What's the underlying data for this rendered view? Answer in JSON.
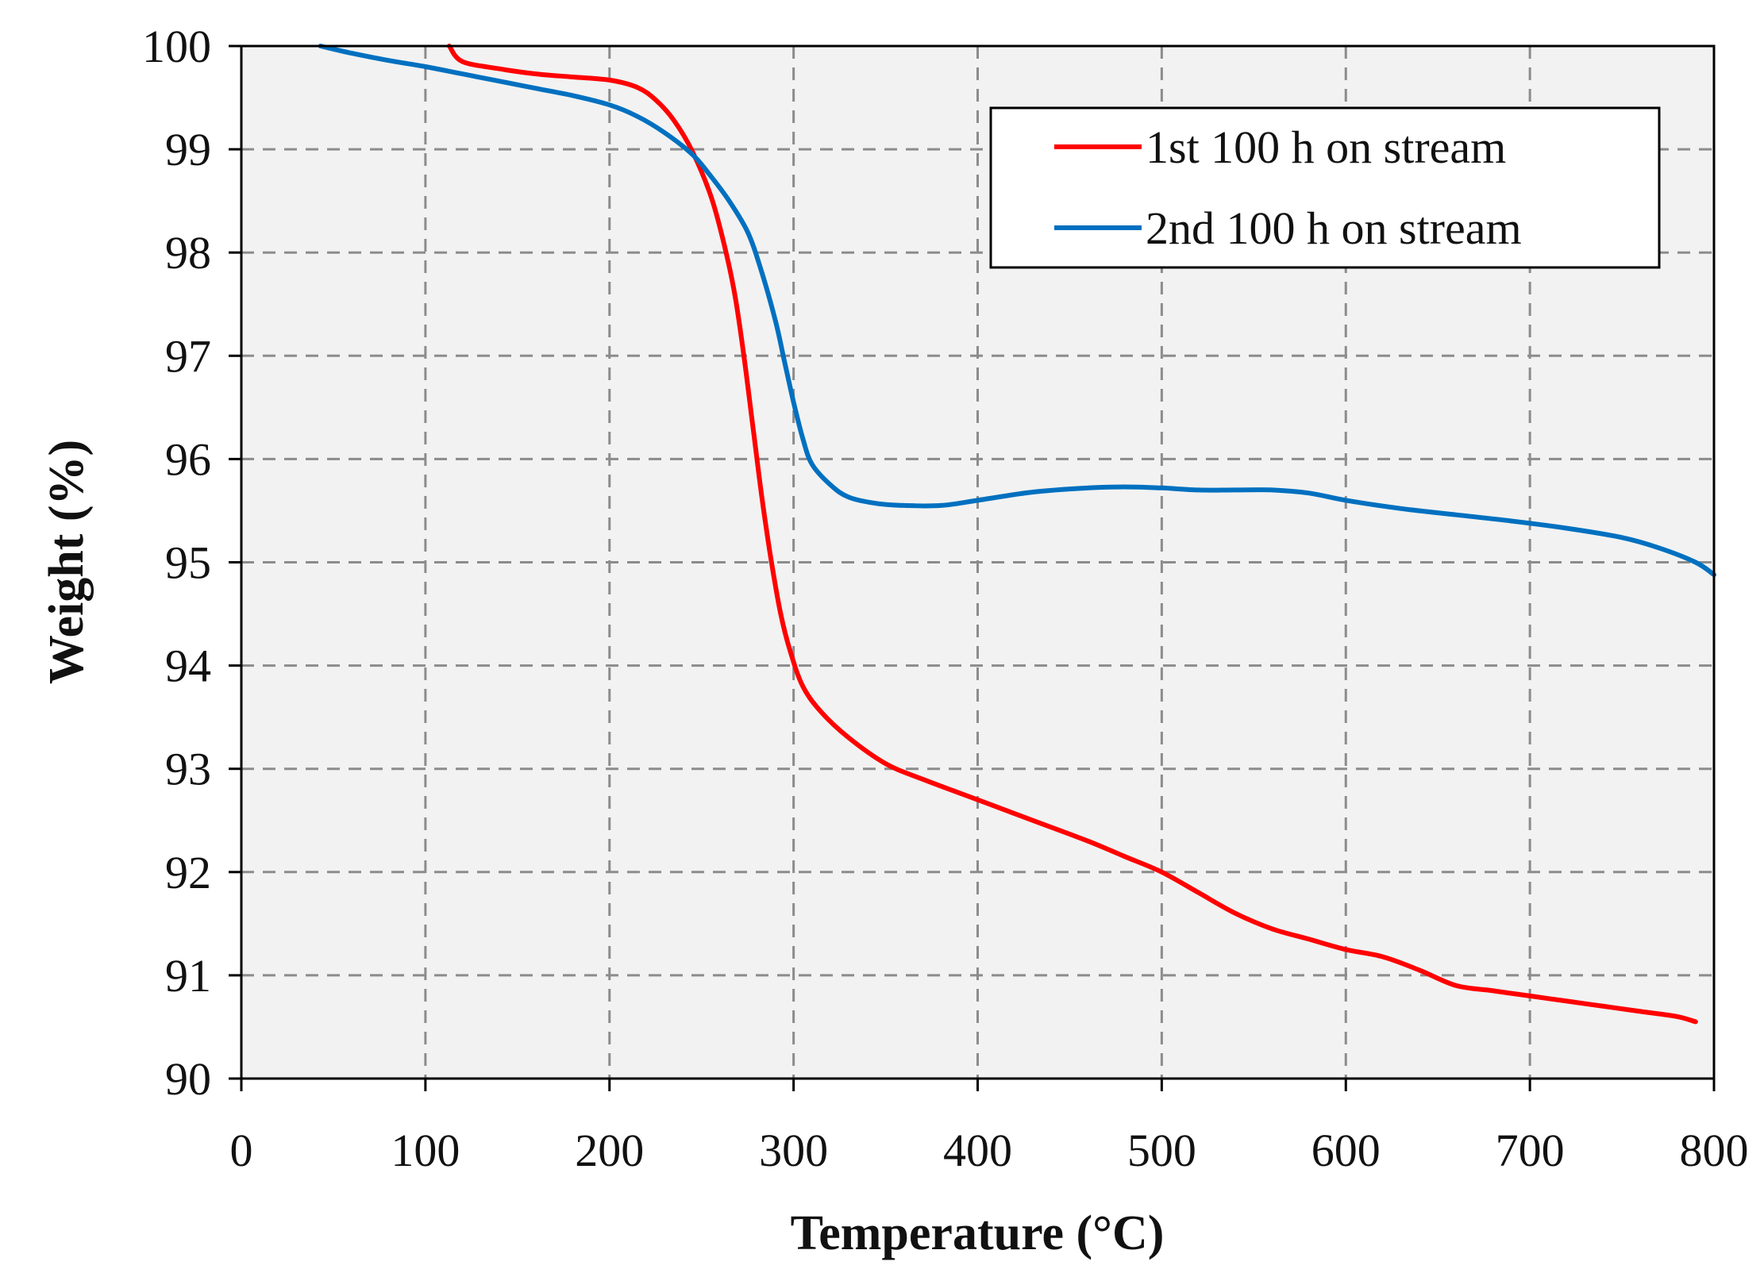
{
  "chart_data": {
    "type": "line",
    "title": "",
    "xlabel": "Temperature (°C)",
    "ylabel": "Weight  (%)",
    "xlim": [
      0,
      800
    ],
    "ylim": [
      90,
      100
    ],
    "xticks": [
      "0",
      "100",
      "200",
      "300",
      "400",
      "500",
      "600",
      "700",
      "800"
    ],
    "yticks": [
      "90",
      "91",
      "92",
      "93",
      "94",
      "95",
      "96",
      "97",
      "98",
      "99",
      "100"
    ],
    "grid": true,
    "legend_position": "top-right",
    "series": [
      {
        "name": "1st 100 h on stream",
        "color": "#ff0000",
        "x": [
          113,
          120,
          140,
          160,
          180,
          200,
          215,
          225,
          235,
          245,
          255,
          262,
          268,
          273,
          278,
          283,
          288,
          293,
          298,
          305,
          315,
          330,
          350,
          370,
          400,
          430,
          460,
          480,
          500,
          520,
          540,
          560,
          580,
          600,
          620,
          640,
          660,
          680,
          700,
          720,
          740,
          760,
          780,
          790
        ],
        "y": [
          100.0,
          99.85,
          99.78,
          99.73,
          99.7,
          99.67,
          99.6,
          99.48,
          99.28,
          98.98,
          98.55,
          98.1,
          97.6,
          97.0,
          96.3,
          95.6,
          95.0,
          94.5,
          94.15,
          93.8,
          93.55,
          93.3,
          93.05,
          92.9,
          92.7,
          92.5,
          92.3,
          92.15,
          92.0,
          91.8,
          91.6,
          91.45,
          91.35,
          91.25,
          91.18,
          91.05,
          90.9,
          90.85,
          90.8,
          90.75,
          90.7,
          90.65,
          90.6,
          90.55
        ]
      },
      {
        "name": "2nd 100 h on stream",
        "color": "#0070c0",
        "x": [
          43,
          60,
          80,
          100,
          120,
          140,
          160,
          180,
          200,
          215,
          230,
          245,
          255,
          265,
          275,
          282,
          290,
          295,
          300,
          305,
          310,
          320,
          330,
          345,
          360,
          380,
          400,
          430,
          460,
          480,
          500,
          520,
          540,
          560,
          580,
          600,
          630,
          660,
          690,
          720,
          750,
          770,
          790,
          800
        ],
        "y": [
          100.0,
          99.93,
          99.86,
          99.8,
          99.73,
          99.66,
          99.59,
          99.52,
          99.43,
          99.32,
          99.16,
          98.95,
          98.74,
          98.5,
          98.2,
          97.85,
          97.35,
          96.95,
          96.55,
          96.2,
          95.95,
          95.75,
          95.63,
          95.57,
          95.55,
          95.55,
          95.6,
          95.68,
          95.72,
          95.73,
          95.72,
          95.7,
          95.7,
          95.7,
          95.67,
          95.6,
          95.52,
          95.46,
          95.4,
          95.33,
          95.24,
          95.14,
          95.0,
          94.88
        ]
      }
    ]
  }
}
